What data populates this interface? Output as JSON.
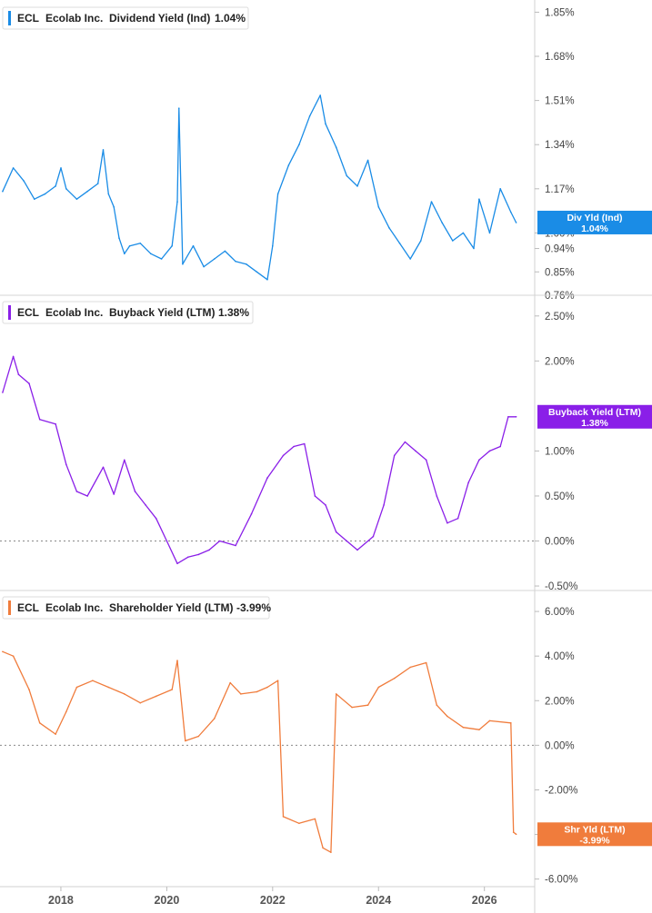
{
  "colors": {
    "dividend": "#1a8ce6",
    "buyback": "#8a1fe8",
    "shareholder": "#f07c3c"
  },
  "chart_data": [
    {
      "type": "line",
      "legend": {
        "ticker": "ECL",
        "company": "Ecolab Inc.",
        "metric": "Dividend Yield (Ind)",
        "value": "1.04%"
      },
      "badge": {
        "label": "Div Yld (Ind)",
        "value": "1.04%"
      },
      "ylim": [
        0.76,
        1.89
      ],
      "yticks": [
        {
          "v": 1.85,
          "label": "1.85%"
        },
        {
          "v": 1.68,
          "label": "1.68%"
        },
        {
          "v": 1.51,
          "label": "1.51%"
        },
        {
          "v": 1.34,
          "label": "1.34%"
        },
        {
          "v": 1.17,
          "label": "1.17%"
        },
        {
          "v": 1.0,
          "label": "1.00%"
        },
        {
          "v": 0.94,
          "label": "0.94%"
        },
        {
          "v": 0.85,
          "label": "0.85%"
        },
        {
          "v": 0.76,
          "label": "0.76%"
        }
      ],
      "zero_line": false,
      "x": [
        2016.9,
        2017.1,
        2017.3,
        2017.5,
        2017.7,
        2017.9,
        2018.0,
        2018.1,
        2018.3,
        2018.5,
        2018.7,
        2018.8,
        2018.9,
        2019.0,
        2019.1,
        2019.2,
        2019.3,
        2019.5,
        2019.7,
        2019.9,
        2020.1,
        2020.2,
        2020.23,
        2020.3,
        2020.5,
        2020.7,
        2020.9,
        2021.1,
        2021.3,
        2021.5,
        2021.7,
        2021.9,
        2022.0,
        2022.1,
        2022.3,
        2022.5,
        2022.7,
        2022.9,
        2023.0,
        2023.2,
        2023.4,
        2023.6,
        2023.8,
        2024.0,
        2024.2,
        2024.4,
        2024.6,
        2024.8,
        2025.0,
        2025.2,
        2025.4,
        2025.6,
        2025.8,
        2025.9,
        2026.1,
        2026.3,
        2026.5,
        2026.6
      ],
      "y": [
        1.16,
        1.25,
        1.2,
        1.13,
        1.15,
        1.18,
        1.25,
        1.17,
        1.13,
        1.16,
        1.19,
        1.32,
        1.15,
        1.1,
        0.98,
        0.92,
        0.95,
        0.96,
        0.92,
        0.9,
        0.95,
        1.12,
        1.48,
        0.88,
        0.95,
        0.87,
        0.9,
        0.93,
        0.89,
        0.88,
        0.85,
        0.82,
        0.95,
        1.15,
        1.26,
        1.34,
        1.45,
        1.53,
        1.42,
        1.33,
        1.22,
        1.18,
        1.28,
        1.1,
        1.02,
        0.96,
        0.9,
        0.97,
        1.12,
        1.04,
        0.97,
        1.0,
        0.94,
        1.13,
        1.0,
        1.17,
        1.08,
        1.04
      ]
    },
    {
      "type": "line",
      "legend": {
        "ticker": "ECL",
        "company": "Ecolab Inc.",
        "metric": "Buyback Yield (LTM)",
        "value": "1.38%"
      },
      "badge": {
        "label": "Buyback Yield (LTM)",
        "value": "1.38%"
      },
      "ylim": [
        -0.55,
        2.72
      ],
      "yticks": [
        {
          "v": 2.5,
          "label": "2.50%"
        },
        {
          "v": 2.0,
          "label": "2.00%"
        },
        {
          "v": 1.0,
          "label": "1.00%"
        },
        {
          "v": 0.5,
          "label": "0.50%"
        },
        {
          "v": 0.0,
          "label": "0.00%"
        },
        {
          "v": -0.5,
          "label": "-0.50%"
        }
      ],
      "zero_line": true,
      "x": [
        2016.9,
        2017.1,
        2017.2,
        2017.4,
        2017.6,
        2017.9,
        2018.1,
        2018.3,
        2018.5,
        2018.8,
        2019.0,
        2019.2,
        2019.4,
        2019.6,
        2019.8,
        2020.0,
        2020.2,
        2020.4,
        2020.6,
        2020.8,
        2021.0,
        2021.3,
        2021.6,
        2021.9,
        2022.2,
        2022.4,
        2022.6,
        2022.8,
        2023.0,
        2023.2,
        2023.4,
        2023.6,
        2023.9,
        2024.1,
        2024.3,
        2024.5,
        2024.7,
        2024.9,
        2025.1,
        2025.3,
        2025.5,
        2025.7,
        2025.9,
        2026.1,
        2026.3,
        2026.45,
        2026.6
      ],
      "y": [
        1.65,
        2.05,
        1.85,
        1.75,
        1.35,
        1.3,
        0.85,
        0.55,
        0.5,
        0.82,
        0.52,
        0.9,
        0.55,
        0.4,
        0.25,
        0.0,
        -0.25,
        -0.18,
        -0.15,
        -0.1,
        0.0,
        -0.05,
        0.3,
        0.7,
        0.95,
        1.05,
        1.08,
        0.5,
        0.4,
        0.1,
        0.0,
        -0.1,
        0.05,
        0.4,
        0.95,
        1.1,
        1.0,
        0.9,
        0.5,
        0.2,
        0.25,
        0.65,
        0.9,
        1.0,
        1.05,
        1.38,
        1.38
      ]
    },
    {
      "type": "line",
      "legend": {
        "ticker": "ECL",
        "company": "Ecolab Inc.",
        "metric": "Shareholder Yield (LTM)",
        "value": "-3.99%"
      },
      "badge": {
        "label": "Shr Yld (LTM)",
        "value": "-3.99%"
      },
      "ylim": [
        -6.3,
        6.9
      ],
      "yticks": [
        {
          "v": 6,
          "label": "6.00%"
        },
        {
          "v": 4,
          "label": "4.00%"
        },
        {
          "v": 2,
          "label": "2.00%"
        },
        {
          "v": 0,
          "label": "0.00%"
        },
        {
          "v": -2,
          "label": "-2.00%"
        },
        {
          "v": -4,
          "label": "-4.00%"
        },
        {
          "v": -6,
          "label": "-6.00%"
        }
      ],
      "zero_line": true,
      "x": [
        2016.9,
        2017.1,
        2017.4,
        2017.6,
        2017.9,
        2018.1,
        2018.3,
        2018.6,
        2018.9,
        2019.2,
        2019.5,
        2019.8,
        2020.1,
        2020.2,
        2020.35,
        2020.6,
        2020.9,
        2021.2,
        2021.4,
        2021.7,
        2021.9,
        2022.1,
        2022.2,
        2022.5,
        2022.8,
        2022.95,
        2023.1,
        2023.2,
        2023.5,
        2023.8,
        2024.0,
        2024.3,
        2024.6,
        2024.9,
        2025.1,
        2025.3,
        2025.6,
        2025.9,
        2026.1,
        2026.5,
        2026.55,
        2026.6
      ],
      "y": [
        4.2,
        4.0,
        2.5,
        1.0,
        0.5,
        1.5,
        2.6,
        2.9,
        2.6,
        2.3,
        1.9,
        2.2,
        2.5,
        3.8,
        0.2,
        0.4,
        1.2,
        2.8,
        2.3,
        2.4,
        2.6,
        2.9,
        -3.2,
        -3.5,
        -3.3,
        -4.6,
        -4.8,
        2.3,
        1.7,
        1.8,
        2.6,
        3.0,
        3.5,
        3.7,
        1.8,
        1.3,
        0.8,
        0.7,
        1.1,
        1.0,
        -3.9,
        -3.99
      ]
    }
  ],
  "x_axis": {
    "xlim": [
      2016.85,
      2026.95
    ],
    "ticks": [
      {
        "v": 2018,
        "label": "2018"
      },
      {
        "v": 2020,
        "label": "2020"
      },
      {
        "v": 2022,
        "label": "2022"
      },
      {
        "v": 2024,
        "label": "2024"
      },
      {
        "v": 2026,
        "label": "2026"
      }
    ]
  }
}
